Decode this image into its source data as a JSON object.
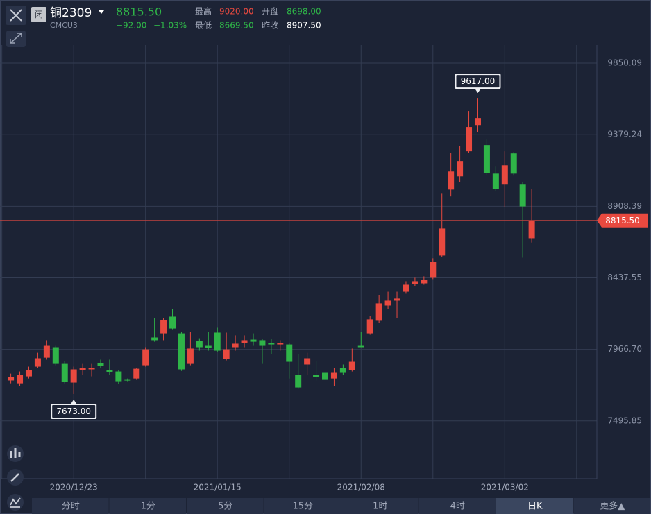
{
  "header": {
    "status": "闭",
    "title": "铜2309",
    "code": "CMCU3",
    "price": "8815.50",
    "change": "−92.00",
    "change_pct": "−1.03%",
    "high_label": "最高",
    "high": "9020.00",
    "open_label": "开盘",
    "open": "8698.00",
    "low_label": "最低",
    "low": "8669.50",
    "prev_close_label": "昨收",
    "prev_close": "8907.50"
  },
  "tabs": [
    "分时",
    "1分",
    "5分",
    "15分",
    "1时",
    "4时",
    "日K",
    "更多▲"
  ],
  "active_tab": "日K",
  "chart_data": {
    "type": "candlestick",
    "up_color": "#e8493f",
    "down_color": "#2fb548",
    "categories": [
      null,
      null,
      null,
      null,
      null,
      null,
      null,
      "2020/12/23",
      null,
      null,
      null,
      null,
      null,
      null,
      null,
      null,
      null,
      null,
      null,
      null,
      null,
      null,
      null,
      "2021/01/15",
      null,
      null,
      null,
      null,
      null,
      null,
      null,
      null,
      null,
      null,
      null,
      null,
      null,
      null,
      null,
      "2021/02/08",
      null,
      null,
      null,
      null,
      null,
      null,
      null,
      null,
      null,
      null,
      null,
      null,
      null,
      null,
      null,
      "2021/03/02",
      null,
      null,
      null
    ],
    "open": [
      7762,
      7743,
      7789,
      7853,
      7912,
      7981,
      7871,
      7748,
      7830,
      7835,
      7876,
      7830,
      7821,
      7766,
      7775,
      7862,
      8045,
      8072,
      8182,
      8072,
      7871,
      8022,
      7990,
      8077,
      7903,
      7981,
      8008,
      8031,
      8027,
      8008,
      7999,
      7999,
      7798,
      7867,
      7798,
      7812,
      7775,
      7844,
      7830,
      7990,
      8072,
      8155,
      8255,
      8287,
      8346,
      8397,
      8401,
      8438,
      8584,
      9018,
      9105,
      9270,
      9443,
      9311,
      9123,
      9055,
      9256,
      9055,
      8698
    ],
    "high": [
      7807,
      7821,
      7853,
      7944,
      8027,
      7990,
      7889,
      7853,
      7871,
      7871,
      7899,
      7899,
      7830,
      7775,
      7844,
      7981,
      8173,
      8173,
      8232,
      8081,
      8081,
      8040,
      8081,
      8109,
      8077,
      8059,
      8059,
      8072,
      8036,
      8036,
      8027,
      8008,
      7935,
      7944,
      7889,
      7844,
      7844,
      7867,
      7972,
      8081,
      8187,
      8324,
      8346,
      8346,
      8415,
      8438,
      8447,
      8566,
      8995,
      9260,
      9306,
      9535,
      9617,
      9352,
      9169,
      9270,
      9265,
      9069,
      9020
    ],
    "low": [
      7743,
      7725,
      7775,
      7844,
      7899,
      7862,
      7743,
      7673,
      7798,
      7789,
      7844,
      7798,
      7739,
      7757,
      7766,
      7853,
      8017,
      8027,
      8095,
      7825,
      7862,
      7958,
      7958,
      7949,
      7894,
      7958,
      7981,
      7990,
      7871,
      7935,
      7958,
      7775,
      7707,
      7798,
      7762,
      7730,
      7725,
      7798,
      7821,
      7981,
      8063,
      8141,
      8232,
      8173,
      8333,
      8383,
      8392,
      8429,
      8575,
      8973,
      9069,
      9260,
      9398,
      9114,
      9009,
      8904,
      9110,
      8570,
      8669.5
    ],
    "close": [
      7784,
      7798,
      7830,
      7908,
      7990,
      7871,
      7752,
      7835,
      7844,
      7844,
      7857,
      7816,
      7757,
      7762,
      7839,
      7967,
      8027,
      8159,
      8104,
      7835,
      7972,
      7981,
      7976,
      7958,
      7967,
      8004,
      8027,
      8017,
      7990,
      7999,
      8008,
      7885,
      7716,
      7908,
      7784,
      7766,
      7812,
      7812,
      7885,
      7981,
      8164,
      8269,
      8287,
      8301,
      8392,
      8415,
      8424,
      8543,
      8762,
      9137,
      9206,
      9430,
      9489,
      9128,
      9023,
      9178,
      9123,
      8907.5,
      8815.5
    ],
    "ylim": [
      7116,
      9969
    ],
    "yticks": [
      {
        "value": 7495.85,
        "label": "7495.85"
      },
      {
        "value": 7966.7,
        "label": "7966.70"
      },
      8437.55,
      8908.39,
      9379.24,
      9850.09
    ],
    "grid": true,
    "max_label": {
      "value": 9617,
      "label": "9617.00"
    },
    "min_label": {
      "value": 7673,
      "label": "7673.00"
    },
    "last_price": {
      "value": 8815.5,
      "label": "8815.50"
    }
  }
}
